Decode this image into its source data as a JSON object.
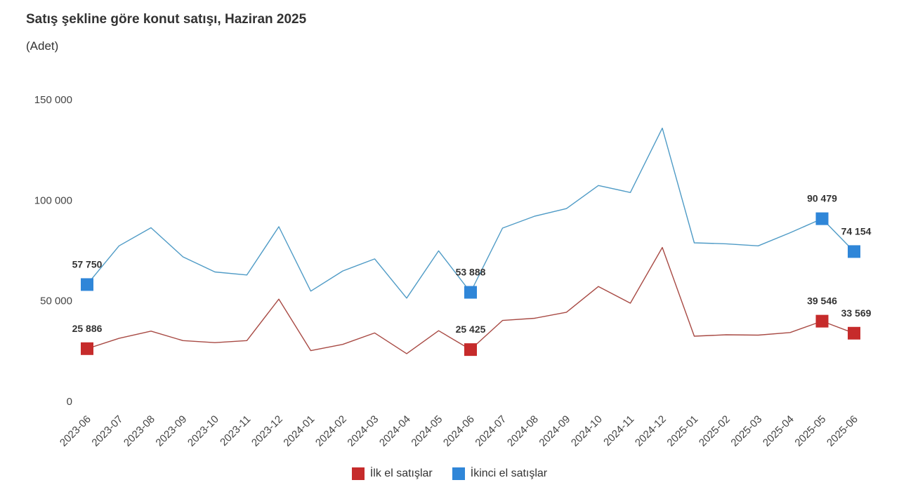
{
  "header": {
    "title": "Satış şekline göre konut satışı, Haziran 2025",
    "subtitle": "(Adet)"
  },
  "colors": {
    "first_hand": "#c62b2b",
    "first_hand_line": "#a84a44",
    "second_hand": "#2f86d8",
    "second_hand_line": "#4f9bc6"
  },
  "chart_data": {
    "type": "line",
    "categories": [
      "2023-06",
      "2023-07",
      "2023-08",
      "2023-09",
      "2023-10",
      "2023-11",
      "2023-12",
      "2024-01",
      "2024-02",
      "2024-03",
      "2024-04",
      "2024-05",
      "2024-06",
      "2024-07",
      "2024-08",
      "2024-09",
      "2024-10",
      "2024-11",
      "2024-12",
      "2025-01",
      "2025-02",
      "2025-03",
      "2025-04",
      "2025-05",
      "2025-06"
    ],
    "y_ticks": [
      {
        "value": 0,
        "label": "0"
      },
      {
        "value": 50000,
        "label": "50 000"
      },
      {
        "value": 100000,
        "label": "100 000"
      },
      {
        "value": 150000,
        "label": "150 000"
      }
    ],
    "ylim": [
      0,
      150000
    ],
    "grid": false,
    "legend_position": "bottom",
    "series": [
      {
        "name": "İlk el satışlar",
        "color_key": "first_hand",
        "values": [
          25886,
          31000,
          34600,
          29900,
          28900,
          29900,
          50500,
          24900,
          28000,
          33700,
          23400,
          34800,
          25425,
          39900,
          41000,
          44000,
          56800,
          48500,
          76200,
          32100,
          32800,
          32600,
          33900,
          39546,
          33569
        ],
        "labels": {
          "0": "25 886",
          "12": "25 425",
          "23": "39 546",
          "24": "33 569"
        }
      },
      {
        "name": "İkinci el satışlar",
        "color_key": "second_hand",
        "values": [
          57750,
          77000,
          86000,
          71500,
          64000,
          62500,
          86500,
          54500,
          64500,
          70500,
          51000,
          74500,
          53888,
          85800,
          91700,
          95500,
          107000,
          103500,
          135500,
          78500,
          78000,
          77000,
          83500,
          90479,
          74154
        ],
        "labels": {
          "0": "57 750",
          "12": "53 888",
          "23": "90 479",
          "24": "74 154"
        }
      }
    ]
  }
}
